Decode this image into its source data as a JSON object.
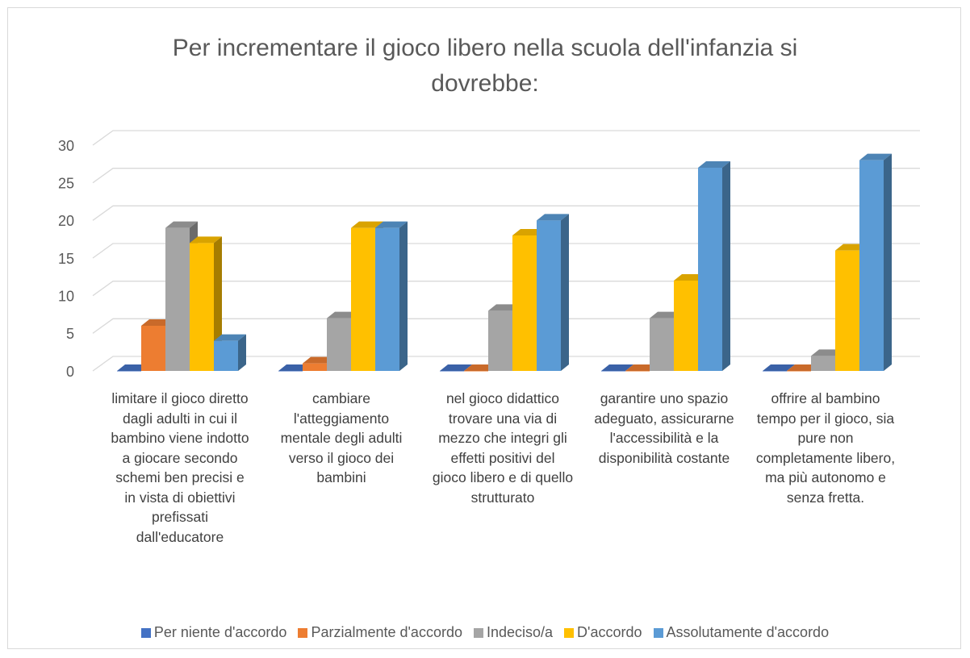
{
  "chart_data": {
    "type": "bar3d",
    "title": "Per incrementare il gioco libero nella scuola dell'infanzia si dovrebbe:",
    "categories": [
      "limitare il gioco diretto dagli adulti in cui il bambino viene indotto a giocare secondo schemi ben precisi e in vista di obiettivi prefissati dall'educatore",
      "cambiare l'atteggiamento mentale degli adulti verso il gioco dei bambini",
      "nel gioco didattico trovare una via di mezzo che integri gli effetti positivi del gioco libero e di quello strutturato",
      "garantire uno spazio adeguato, assicurarne l'accessibilità e la disponibilità costante",
      "offrire al bambino tempo per il gioco, sia pure non completamente libero, ma più autonomo e senza fretta."
    ],
    "series": [
      {
        "name": "Per niente d'accordo",
        "color": "#4472c4",
        "values": [
          0,
          0,
          0,
          0,
          0
        ]
      },
      {
        "name": "Parzialmente d'accordo",
        "color": "#ed7d31",
        "values": [
          6,
          1,
          0,
          0,
          0
        ]
      },
      {
        "name": "Indeciso/a",
        "color": "#a5a5a5",
        "values": [
          19,
          7,
          8,
          7,
          2
        ]
      },
      {
        "name": "D'accordo",
        "color": "#ffc000",
        "values": [
          17,
          19,
          18,
          12,
          16
        ]
      },
      {
        "name": "Assolutamente d'accordo",
        "color": "#5b9bd5",
        "values": [
          4,
          19,
          20,
          27,
          28
        ]
      }
    ],
    "ylim": [
      0,
      30
    ],
    "yticks": [
      0,
      5,
      10,
      15,
      20,
      25,
      30
    ],
    "grid": true,
    "legend": "bottom"
  }
}
